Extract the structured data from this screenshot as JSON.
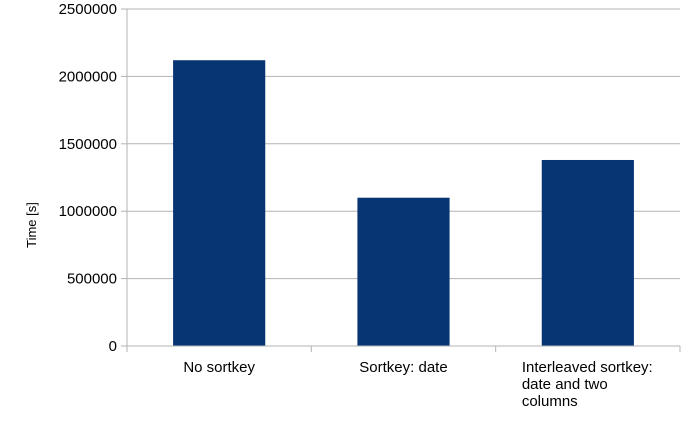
{
  "chart_data": {
    "type": "bar",
    "title": "",
    "xlabel": "",
    "ylabel": "Time [s]",
    "ylim": [
      0,
      2500000
    ],
    "yticks": [
      "0",
      "500000",
      "1000000",
      "1500000",
      "2000000",
      "2500000"
    ],
    "categories": [
      [
        "No sortkey"
      ],
      [
        "Sortkey: date"
      ],
      [
        "Interleaved sortkey:",
        "date and two",
        "columns"
      ]
    ],
    "series": [
      {
        "values": [
          2120000,
          1100000,
          1380000
        ]
      }
    ],
    "grid": true,
    "legend": "none",
    "colors": {
      "bar": "#073574",
      "grid": "#b3b3b3",
      "axis": "#b3b3b3"
    }
  }
}
